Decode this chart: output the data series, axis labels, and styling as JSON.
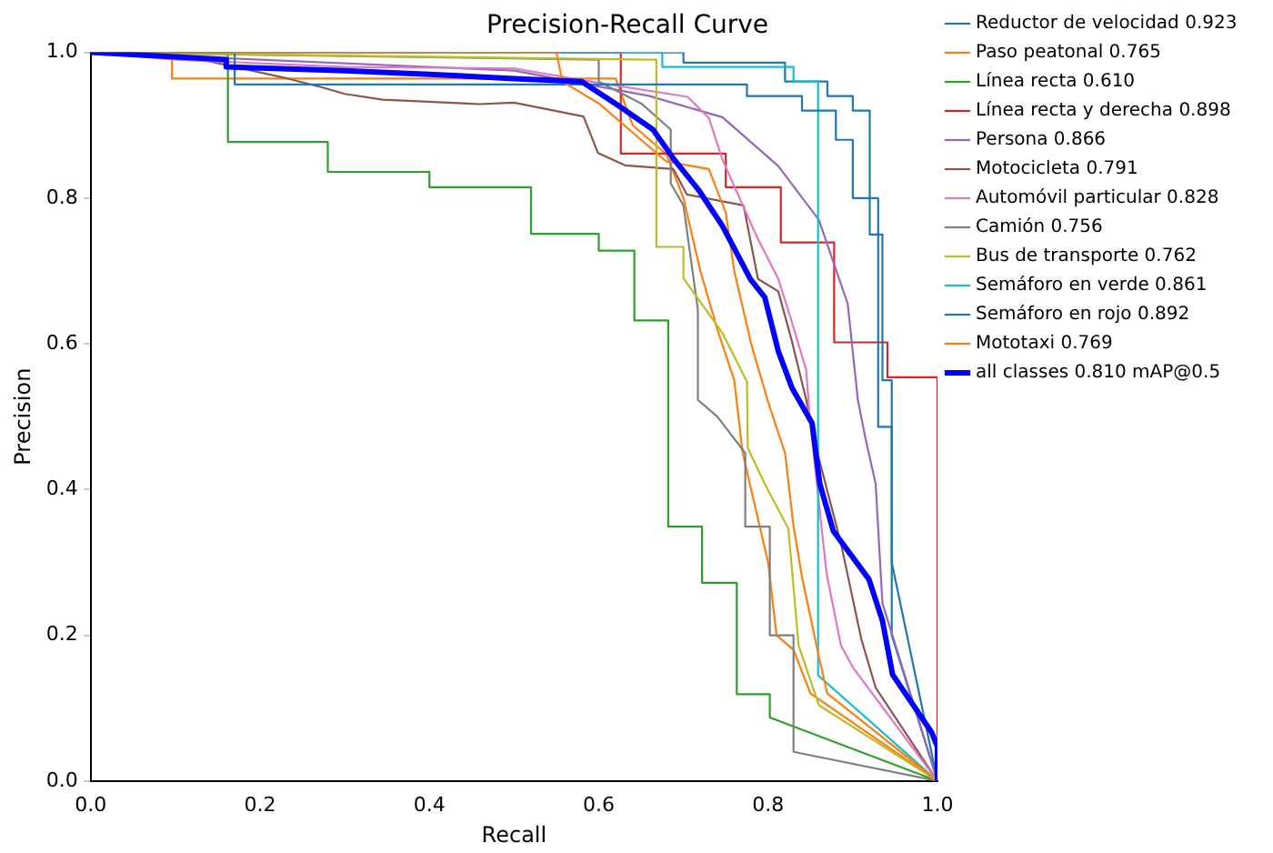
{
  "chart_data": {
    "type": "line",
    "title": "Precision-Recall Curve",
    "xlabel": "Recall",
    "ylabel": "Precision",
    "xlim": [
      0,
      1
    ],
    "ylim": [
      0,
      1
    ],
    "xticks": [
      {
        "value": 0,
        "label": "0.0"
      },
      {
        "value": 0.2,
        "label": "0.2"
      },
      {
        "value": 0.4,
        "label": "0.4"
      },
      {
        "value": 0.6,
        "label": "0.6"
      },
      {
        "value": 0.8,
        "label": "0.8"
      },
      {
        "value": 1,
        "label": "1.0"
      }
    ],
    "yticks": [
      {
        "value": 0,
        "label": "0.0"
      },
      {
        "value": 0.2,
        "label": "0.2"
      },
      {
        "value": 0.4,
        "label": "0.4"
      },
      {
        "value": 0.6,
        "label": "0.6"
      },
      {
        "value": 0.8,
        "label": "0.8"
      },
      {
        "value": 1,
        "label": "1.0"
      }
    ],
    "grid": false,
    "legend": "right",
    "marker": "none",
    "line_style": "solid",
    "series": [
      {
        "name": "Reductor de velocidad 0.923",
        "color": "#1f77b4",
        "x": [
          0,
          0.7,
          0.7,
          0.82,
          0.82,
          0.87,
          0.87,
          0.9,
          0.9,
          0.92,
          0.92,
          0.935,
          0.935,
          0.946,
          0.946,
          1
        ],
        "values": [
          1,
          1,
          0.986,
          0.986,
          0.96,
          0.96,
          0.94,
          0.94,
          0.92,
          0.92,
          0.75,
          0.75,
          0.55,
          0.55,
          0.2,
          0
        ]
      },
      {
        "name": "Paso peatonal 0.765",
        "color": "#ff7f0e",
        "x": [
          0,
          0.096,
          0.096,
          0.62,
          0.64,
          0.68,
          0.7,
          0.72,
          0.74,
          0.76,
          0.77,
          0.79,
          0.8,
          0.81,
          0.83,
          0.85,
          1
        ],
        "values": [
          1,
          1,
          0.964,
          0.964,
          0.9,
          0.86,
          0.8,
          0.7,
          0.62,
          0.55,
          0.45,
          0.35,
          0.3,
          0.2,
          0.18,
          0.12,
          0
        ]
      },
      {
        "name": "Línea recta 0.610",
        "color": "#2ca02c",
        "x": [
          0,
          0.162,
          0.162,
          0.28,
          0.28,
          0.4,
          0.4,
          0.52,
          0.52,
          0.6,
          0.6,
          0.642,
          0.642,
          0.682,
          0.682,
          0.722,
          0.722,
          0.763,
          0.763,
          0.802,
          0.802,
          1
        ],
        "values": [
          1,
          1,
          0.877,
          0.877,
          0.836,
          0.836,
          0.815,
          0.815,
          0.751,
          0.751,
          0.728,
          0.728,
          0.632,
          0.632,
          0.349,
          0.349,
          0.272,
          0.272,
          0.119,
          0.119,
          0.087,
          0
        ]
      },
      {
        "name": "Línea recta y derecha 0.898",
        "color": "#d62728",
        "x": [
          0,
          0.626,
          0.626,
          0.75,
          0.75,
          0.815,
          0.815,
          0.878,
          0.878,
          0.941,
          0.941,
          1,
          1
        ],
        "values": [
          1,
          1,
          0.861,
          0.861,
          0.815,
          0.815,
          0.739,
          0.739,
          0.602,
          0.602,
          0.554,
          0.554,
          0
        ]
      },
      {
        "name": "Persona 0.866",
        "color": "#9467bd",
        "x": [
          0,
          0.2,
          0.5,
          0.66,
          0.746,
          0.812,
          0.86,
          0.894,
          0.906,
          0.915,
          0.927,
          0.935,
          1
        ],
        "values": [
          1,
          0.99,
          0.975,
          0.94,
          0.911,
          0.844,
          0.77,
          0.655,
          0.523,
          0.47,
          0.408,
          0.244,
          0
        ]
      },
      {
        "name": "Motocicleta 0.791",
        "color": "#8c564b",
        "x": [
          0,
          0.135,
          0.233,
          0.273,
          0.3,
          0.345,
          0.459,
          0.5,
          0.582,
          0.599,
          0.631,
          0.688,
          0.704,
          0.771,
          0.788,
          0.812,
          0.828,
          0.845,
          0.853,
          0.886,
          0.91,
          0.927,
          1
        ],
        "values": [
          1,
          0.989,
          0.964,
          0.952,
          0.943,
          0.935,
          0.929,
          0.931,
          0.912,
          0.862,
          0.845,
          0.84,
          0.805,
          0.79,
          0.689,
          0.672,
          0.604,
          0.523,
          0.474,
          0.326,
          0.195,
          0.128,
          0
        ]
      },
      {
        "name": "Automóvil particular 0.828",
        "color": "#e377c2",
        "x": [
          0,
          0.1,
          0.3,
          0.5,
          0.59,
          0.705,
          0.73,
          0.746,
          0.787,
          0.812,
          0.828,
          0.845,
          0.849,
          0.869,
          0.886,
          0.9,
          1
        ],
        "values": [
          1,
          0.99,
          0.98,
          0.978,
          0.96,
          0.939,
          0.91,
          0.853,
          0.746,
          0.689,
          0.63,
          0.564,
          0.5,
          0.285,
          0.186,
          0.156,
          0
        ]
      },
      {
        "name": "Camión 0.756",
        "color": "#7f7f7f",
        "x": [
          0,
          0.6,
          0.6,
          0.65,
          0.685,
          0.685,
          0.7,
          0.717,
          0.717,
          0.74,
          0.773,
          0.773,
          0.802,
          0.802,
          0.83,
          0.83,
          1
        ],
        "values": [
          1,
          0.99,
          0.96,
          0.93,
          0.894,
          0.82,
          0.79,
          0.647,
          0.523,
          0.5,
          0.45,
          0.349,
          0.349,
          0.2,
          0.2,
          0.04,
          0
        ]
      },
      {
        "name": "Bus de transporte 0.762",
        "color": "#bcbd22",
        "x": [
          0,
          0.66,
          0.668,
          0.668,
          0.7,
          0.7,
          0.746,
          0.775,
          0.776,
          0.796,
          0.824,
          0.836,
          0.86,
          1
        ],
        "values": [
          1,
          0.99,
          0.99,
          0.733,
          0.733,
          0.69,
          0.615,
          0.548,
          0.457,
          0.408,
          0.346,
          0.186,
          0.104,
          0
        ]
      },
      {
        "name": "Semáforo en verde 0.861",
        "color": "#17becf",
        "x": [
          0,
          0.675,
          0.675,
          0.83,
          0.83,
          0.859,
          0.859,
          1
        ],
        "values": [
          1,
          1,
          0.98,
          0.98,
          0.96,
          0.96,
          0.145,
          0
        ]
      },
      {
        "name": "Semáforo en rojo 0.892",
        "color": "#1f77b4",
        "x": [
          0,
          0.17,
          0.17,
          0.775,
          0.775,
          0.84,
          0.84,
          0.88,
          0.88,
          0.9,
          0.9,
          0.93,
          0.93,
          0.946,
          0.946,
          1
        ],
        "values": [
          1,
          1,
          0.956,
          0.956,
          0.94,
          0.94,
          0.92,
          0.92,
          0.88,
          0.88,
          0.8,
          0.8,
          0.486,
          0.486,
          0.3,
          0
        ]
      },
      {
        "name": "Mototaxi 0.769",
        "color": "#ff7f0e",
        "x": [
          0,
          0.55,
          0.557,
          0.6,
          0.65,
          0.68,
          0.73,
          0.75,
          0.76,
          0.78,
          0.8,
          0.82,
          0.83,
          0.84,
          0.86,
          0.87,
          1
        ],
        "values": [
          1,
          1,
          0.96,
          0.93,
          0.88,
          0.85,
          0.84,
          0.78,
          0.7,
          0.6,
          0.52,
          0.45,
          0.35,
          0.28,
          0.17,
          0.12,
          0
        ]
      },
      {
        "name": "all classes 0.810 mAP@0.5",
        "color": "#0000ff",
        "x": [
          0,
          0.16,
          0.16,
          0.3,
          0.4,
          0.5,
          0.58,
          0.623,
          0.664,
          0.689,
          0.718,
          0.746,
          0.779,
          0.796,
          0.812,
          0.828,
          0.852,
          0.861,
          0.877,
          0.919,
          0.935,
          0.947,
          0.993,
          1,
          1
        ],
        "values": [
          1,
          0.99,
          0.98,
          0.975,
          0.97,
          0.964,
          0.96,
          0.927,
          0.894,
          0.853,
          0.811,
          0.762,
          0.689,
          0.664,
          0.59,
          0.54,
          0.491,
          0.408,
          0.343,
          0.277,
          0.22,
          0.146,
          0.067,
          0.047,
          0
        ]
      }
    ]
  }
}
